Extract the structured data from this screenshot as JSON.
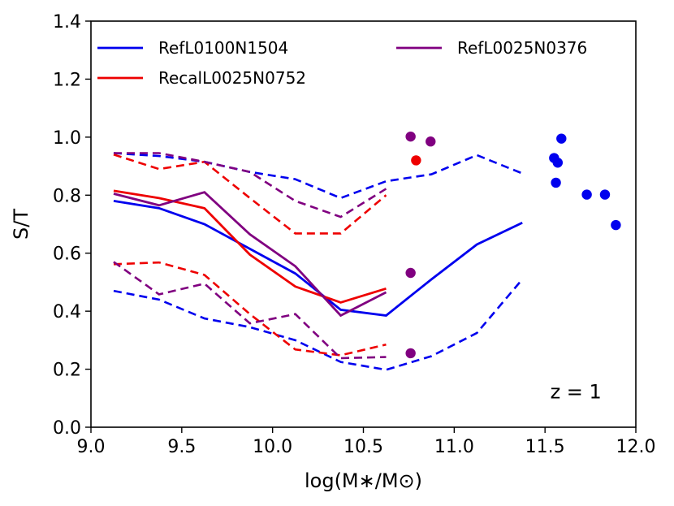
{
  "chart_data": {
    "type": "line",
    "xlabel": "log(M∗/M⊙)",
    "ylabel": "S/T",
    "xlim": [
      9.0,
      12.0
    ],
    "ylim": [
      0.0,
      1.4
    ],
    "x_ticks": [
      "9.0",
      "9.5",
      "10.0",
      "10.5",
      "11.0",
      "11.5",
      "12.0"
    ],
    "y_ticks": [
      "0.0",
      "0.2",
      "0.4",
      "0.6",
      "0.8",
      "1.0",
      "1.2",
      "1.4"
    ],
    "annotation": "z = 1",
    "legend": {
      "placement": "top-left",
      "columns": 2
    },
    "series": [
      {
        "name": "RefL0100N1504",
        "color": "#0000ee",
        "median": {
          "x": [
            9.125,
            9.375,
            9.625,
            9.875,
            10.125,
            10.375,
            10.625,
            10.875,
            11.125,
            11.375
          ],
          "y": [
            0.78,
            0.755,
            0.7,
            0.615,
            0.53,
            0.405,
            0.385,
            0.51,
            0.63,
            0.705
          ]
        },
        "upper": {
          "x": [
            9.125,
            9.375,
            9.625,
            9.875,
            10.125,
            10.375,
            10.625,
            10.875,
            11.125,
            11.375
          ],
          "y": [
            0.945,
            0.935,
            0.915,
            0.88,
            0.855,
            0.79,
            0.848,
            0.872,
            0.938,
            0.875
          ]
        },
        "lower": {
          "x": [
            9.125,
            9.375,
            9.625,
            9.875,
            10.125,
            10.375,
            10.625,
            10.875,
            11.125,
            11.375
          ],
          "y": [
            0.47,
            0.44,
            0.375,
            0.345,
            0.3,
            0.225,
            0.198,
            0.245,
            0.325,
            0.51
          ]
        },
        "points": {
          "x": [
            11.55,
            11.57,
            11.59,
            11.56,
            11.73,
            11.83,
            11.89
          ],
          "y": [
            0.928,
            0.912,
            0.995,
            0.843,
            0.802,
            0.802,
            0.697
          ]
        }
      },
      {
        "name": "RecalL0025N0752",
        "color": "#ee0000",
        "median": {
          "x": [
            9.125,
            9.375,
            9.625,
            9.875,
            10.125,
            10.375,
            10.625
          ],
          "y": [
            0.815,
            0.79,
            0.755,
            0.595,
            0.485,
            0.43,
            0.478
          ]
        },
        "upper": {
          "x": [
            9.125,
            9.375,
            9.625,
            9.875,
            10.125,
            10.375,
            10.625
          ],
          "y": [
            0.94,
            0.89,
            0.915,
            0.79,
            0.668,
            0.668,
            0.8
          ]
        },
        "lower": {
          "x": [
            9.125,
            9.375,
            9.625,
            9.875,
            10.125,
            10.375,
            10.625
          ],
          "y": [
            0.562,
            0.568,
            0.525,
            0.39,
            0.268,
            0.248,
            0.285
          ]
        },
        "points": {
          "x": [
            10.79
          ],
          "y": [
            0.92
          ]
        }
      },
      {
        "name": "RefL0025N0376",
        "color": "#800080",
        "median": {
          "x": [
            9.125,
            9.375,
            9.625,
            9.875,
            10.125,
            10.375,
            10.625
          ],
          "y": [
            0.805,
            0.765,
            0.81,
            0.665,
            0.555,
            0.385,
            0.465
          ]
        },
        "upper": {
          "x": [
            9.125,
            9.375,
            9.625,
            9.875,
            10.125,
            10.375,
            10.625
          ],
          "y": [
            0.945,
            0.945,
            0.915,
            0.88,
            0.78,
            0.725,
            0.822
          ]
        },
        "lower": {
          "x": [
            9.125,
            9.375,
            9.625,
            9.875,
            10.125,
            10.375,
            10.625
          ],
          "y": [
            0.57,
            0.458,
            0.495,
            0.358,
            0.39,
            0.238,
            0.242
          ]
        },
        "points": {
          "x": [
            10.76,
            10.87,
            10.76,
            10.76
          ],
          "y": [
            1.002,
            0.985,
            0.532,
            0.255
          ]
        }
      }
    ]
  }
}
